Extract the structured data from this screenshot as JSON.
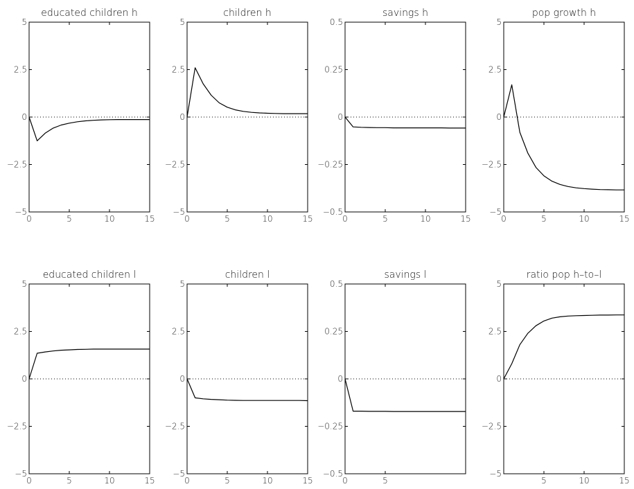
{
  "chart_data": [
    {
      "type": "line",
      "title": "educated children h",
      "xlim": [
        0,
        15
      ],
      "ylim": [
        -5,
        5
      ],
      "xticks": [
        0,
        5,
        10,
        15
      ],
      "xtick_labels": [
        "0",
        "5",
        "10",
        "15"
      ],
      "yticks": [
        -5,
        -2.5,
        0,
        2.5,
        5
      ],
      "ytick_labels": [
        "−5",
        "−2.5",
        "0",
        "2.5",
        "5"
      ],
      "zero_line": "dotted",
      "x": [
        0,
        1,
        2,
        3,
        4,
        5,
        6,
        7,
        8,
        9,
        10,
        11,
        12,
        13,
        14,
        15
      ],
      "y": [
        0,
        -1.25,
        -0.85,
        -0.58,
        -0.42,
        -0.32,
        -0.25,
        -0.2,
        -0.17,
        -0.15,
        -0.14,
        -0.13,
        -0.13,
        -0.13,
        -0.13,
        -0.13
      ]
    },
    {
      "type": "line",
      "title": "children h",
      "xlim": [
        0,
        15
      ],
      "ylim": [
        -5,
        5
      ],
      "xticks": [
        0,
        5,
        10,
        15
      ],
      "xtick_labels": [
        "0",
        "5",
        "10",
        "15"
      ],
      "yticks": [
        -5,
        -2.5,
        0,
        2.5,
        5
      ],
      "ytick_labels": [
        "−5",
        "−2.5",
        "0",
        "2.5",
        "5"
      ],
      "zero_line": "dotted",
      "x": [
        0,
        1,
        2,
        3,
        4,
        5,
        6,
        7,
        8,
        9,
        10,
        11,
        12,
        13,
        14,
        15
      ],
      "y": [
        0,
        2.6,
        1.75,
        1.15,
        0.75,
        0.52,
        0.38,
        0.3,
        0.25,
        0.22,
        0.2,
        0.19,
        0.18,
        0.18,
        0.18,
        0.18
      ]
    },
    {
      "type": "line",
      "title": "savings h",
      "xlim": [
        0,
        15
      ],
      "ylim": [
        -0.5,
        0.5
      ],
      "xticks": [
        0,
        5,
        10,
        15
      ],
      "xtick_labels": [
        "0",
        "5",
        "10",
        "15"
      ],
      "yticks": [
        -0.5,
        -0.25,
        0,
        0.25,
        0.5
      ],
      "ytick_labels": [
        "−0.5",
        "−0.25",
        "0",
        "0.25",
        "0.5"
      ],
      "zero_line": "dotted",
      "x": [
        0,
        1,
        2,
        3,
        4,
        5,
        6,
        7,
        8,
        9,
        10,
        11,
        12,
        13,
        14,
        15
      ],
      "y": [
        0,
        -0.052,
        -0.054,
        -0.055,
        -0.056,
        -0.056,
        -0.057,
        -0.057,
        -0.057,
        -0.057,
        -0.057,
        -0.057,
        -0.057,
        -0.058,
        -0.058,
        -0.058
      ]
    },
    {
      "type": "line",
      "title": "pop growth h",
      "xlim": [
        0,
        15
      ],
      "ylim": [
        -5,
        5
      ],
      "xticks": [
        0,
        5,
        10,
        15
      ],
      "xtick_labels": [
        "0",
        "5",
        "10",
        "15"
      ],
      "yticks": [
        -5,
        -2.5,
        0,
        2.5,
        5
      ],
      "ytick_labels": [
        "−5",
        "−2.5",
        "0",
        "2.5",
        "5"
      ],
      "zero_line": "dotted",
      "x": [
        0,
        1,
        2,
        3,
        4,
        5,
        6,
        7,
        8,
        9,
        10,
        11,
        12,
        13,
        14,
        15
      ],
      "y": [
        0,
        1.7,
        -0.8,
        -1.9,
        -2.65,
        -3.1,
        -3.38,
        -3.55,
        -3.66,
        -3.73,
        -3.77,
        -3.8,
        -3.82,
        -3.83,
        -3.84,
        -3.84
      ]
    },
    {
      "type": "line",
      "title": "educated children l",
      "xlim": [
        0,
        15
      ],
      "ylim": [
        -5,
        5
      ],
      "xticks": [
        0,
        5,
        10,
        15
      ],
      "xtick_labels": [
        "0",
        "5",
        "10",
        "15"
      ],
      "yticks": [
        -5,
        -2.5,
        0,
        2.5,
        5
      ],
      "ytick_labels": [
        "−5",
        "−2.5",
        "0",
        "2.5",
        "5"
      ],
      "zero_line": "dotted",
      "x": [
        0,
        1,
        2,
        3,
        4,
        5,
        6,
        7,
        8,
        9,
        10,
        11,
        12,
        13,
        14,
        15
      ],
      "y": [
        0,
        1.35,
        1.42,
        1.47,
        1.51,
        1.53,
        1.55,
        1.56,
        1.57,
        1.57,
        1.57,
        1.57,
        1.57,
        1.57,
        1.57,
        1.57
      ]
    },
    {
      "type": "line",
      "title": "children l",
      "xlim": [
        0,
        15
      ],
      "ylim": [
        -5,
        5
      ],
      "xticks": [
        0,
        5,
        10,
        15
      ],
      "xtick_labels": [
        "0",
        "5",
        "10",
        "15"
      ],
      "yticks": [
        -5,
        -2.5,
        0,
        2.5,
        5
      ],
      "ytick_labels": [
        "−5",
        "−2.5",
        "0",
        "2.5",
        "5"
      ],
      "zero_line": "dotted",
      "x": [
        0,
        1,
        2,
        3,
        4,
        5,
        6,
        7,
        8,
        9,
        10,
        11,
        12,
        13,
        14,
        15
      ],
      "y": [
        0,
        -1.0,
        -1.05,
        -1.08,
        -1.1,
        -1.12,
        -1.13,
        -1.14,
        -1.14,
        -1.14,
        -1.14,
        -1.14,
        -1.14,
        -1.14,
        -1.14,
        -1.15
      ]
    },
    {
      "type": "line",
      "title": "savings l",
      "xlim": [
        0,
        15
      ],
      "ylim": [
        -0.5,
        0.5
      ],
      "xticks": [
        0,
        5
      ],
      "xtick_labels": [
        "0",
        "5"
      ],
      "yticks": [
        -0.5,
        -0.25,
        0,
        0.25,
        0.5
      ],
      "ytick_labels": [
        "−0.5",
        "−0.25",
        "0",
        "0.25",
        "0.5"
      ],
      "zero_line": "dotted",
      "x": [
        0,
        1,
        2,
        3,
        4,
        5,
        6,
        7,
        8,
        9,
        10,
        11,
        12,
        13,
        14,
        15
      ],
      "y": [
        0,
        -0.17,
        -0.17,
        -0.171,
        -0.171,
        -0.171,
        -0.172,
        -0.172,
        -0.172,
        -0.172,
        -0.172,
        -0.172,
        -0.172,
        -0.172,
        -0.172,
        -0.172
      ]
    },
    {
      "type": "line",
      "title": "ratio pop h–to–l",
      "xlim": [
        0,
        15
      ],
      "ylim": [
        -5,
        5
      ],
      "xticks": [
        5,
        10,
        15
      ],
      "xtick_labels": [
        "5",
        "10",
        "15"
      ],
      "yticks": [
        -5,
        -2.5,
        0,
        2.5,
        5
      ],
      "ytick_labels": [
        "−5",
        "−2.5",
        "0",
        "2.5",
        "5"
      ],
      "zero_line": "dotted",
      "x": [
        0,
        1,
        2,
        3,
        4,
        5,
        6,
        7,
        8,
        9,
        10,
        11,
        12,
        13,
        14,
        15
      ],
      "y": [
        0,
        0.8,
        1.8,
        2.4,
        2.8,
        3.05,
        3.2,
        3.27,
        3.31,
        3.33,
        3.34,
        3.35,
        3.36,
        3.36,
        3.37,
        3.37
      ]
    }
  ]
}
